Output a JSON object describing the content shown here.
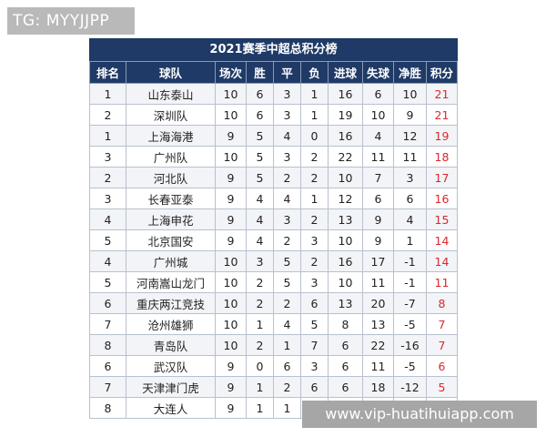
{
  "watermark_top": "TG: MYYJJPP",
  "watermark_bottom": "www.vip-huatihuiapp.com",
  "table": {
    "title": "2021赛季中超总积分榜",
    "headers": [
      "排名",
      "球队",
      "场次",
      "胜",
      "平",
      "负",
      "进球",
      "失球",
      "净胜",
      "积分"
    ],
    "rows": [
      [
        "1",
        "山东泰山",
        "10",
        "6",
        "3",
        "1",
        "16",
        "6",
        "10",
        "21"
      ],
      [
        "2",
        "深圳队",
        "10",
        "6",
        "3",
        "1",
        "19",
        "10",
        "9",
        "21"
      ],
      [
        "1",
        "上海海港",
        "9",
        "5",
        "4",
        "0",
        "16",
        "4",
        "12",
        "19"
      ],
      [
        "3",
        "广州队",
        "10",
        "5",
        "3",
        "2",
        "22",
        "11",
        "11",
        "18"
      ],
      [
        "2",
        "河北队",
        "9",
        "5",
        "2",
        "2",
        "10",
        "7",
        "3",
        "17"
      ],
      [
        "3",
        "长春亚泰",
        "9",
        "4",
        "4",
        "1",
        "12",
        "6",
        "6",
        "16"
      ],
      [
        "4",
        "上海申花",
        "9",
        "4",
        "3",
        "2",
        "13",
        "9",
        "4",
        "15"
      ],
      [
        "5",
        "北京国安",
        "9",
        "4",
        "2",
        "3",
        "10",
        "9",
        "1",
        "14"
      ],
      [
        "4",
        "广州城",
        "10",
        "3",
        "5",
        "2",
        "16",
        "17",
        "-1",
        "14"
      ],
      [
        "5",
        "河南嵩山龙门",
        "10",
        "2",
        "5",
        "3",
        "10",
        "11",
        "-1",
        "11"
      ],
      [
        "6",
        "重庆两江竞技",
        "10",
        "2",
        "2",
        "6",
        "13",
        "20",
        "-7",
        "8"
      ],
      [
        "7",
        "沧州雄狮",
        "10",
        "1",
        "4",
        "5",
        "8",
        "13",
        "-5",
        "7"
      ],
      [
        "8",
        "青岛队",
        "10",
        "2",
        "1",
        "7",
        "6",
        "22",
        "-16",
        "7"
      ],
      [
        "6",
        "武汉队",
        "9",
        "0",
        "6",
        "3",
        "6",
        "11",
        "-5",
        "6"
      ],
      [
        "7",
        "天津津门虎",
        "9",
        "1",
        "2",
        "6",
        "6",
        "18",
        "-12",
        "5"
      ],
      [
        "8",
        "大连人",
        "9",
        "1",
        "1",
        "7",
        "5",
        "14",
        "-9",
        "4"
      ]
    ]
  }
}
